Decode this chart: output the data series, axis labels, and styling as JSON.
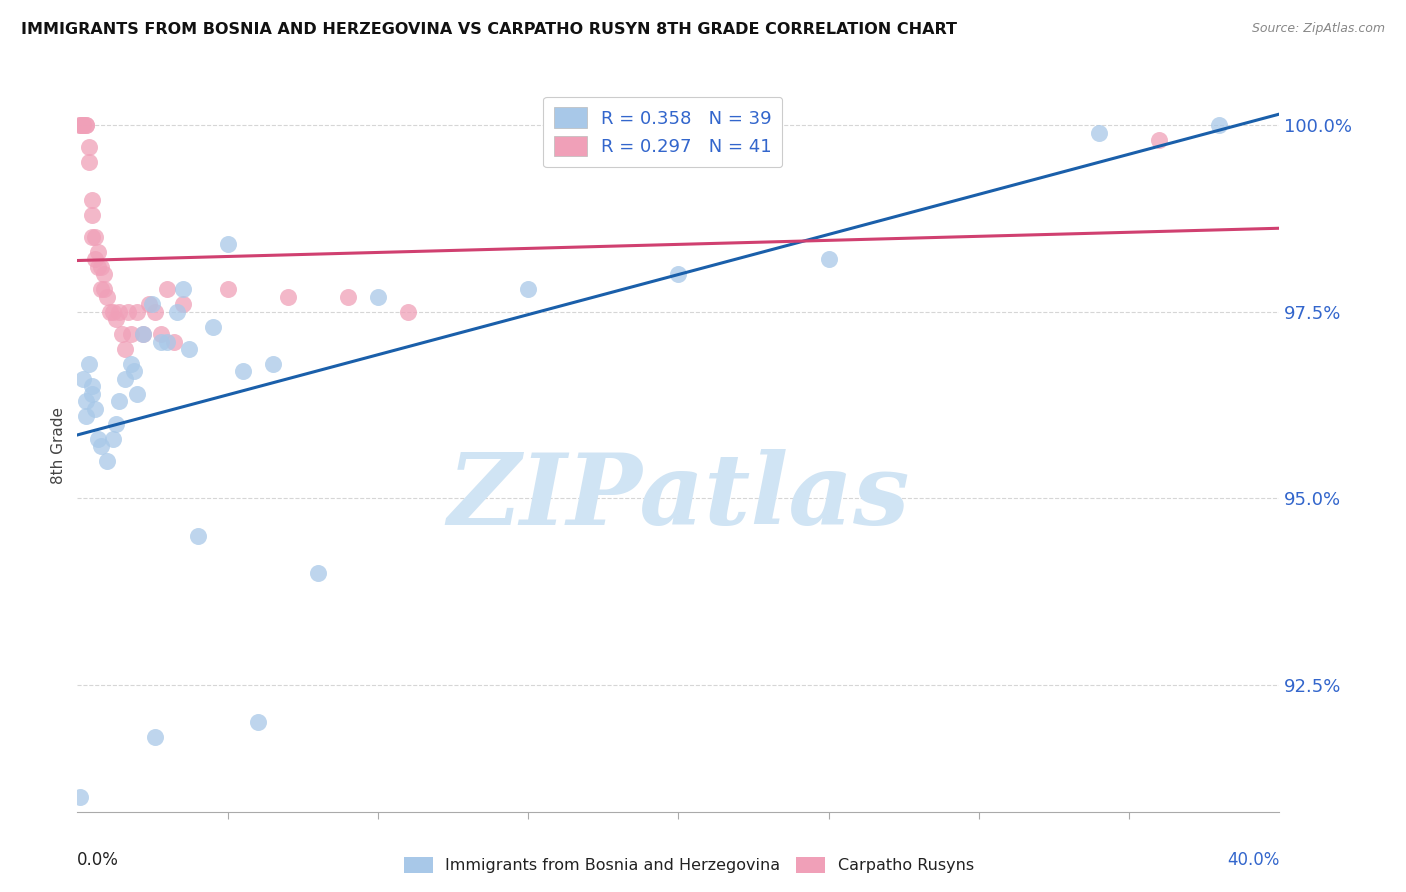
{
  "title": "IMMIGRANTS FROM BOSNIA AND HERZEGOVINA VS CARPATHO RUSYN 8TH GRADE CORRELATION CHART",
  "source": "Source: ZipAtlas.com",
  "ylabel": "8th Grade",
  "xmin": 0.0,
  "xmax": 0.4,
  "ymin": 0.908,
  "ymax": 1.006,
  "yticks": [
    1.0,
    0.975,
    0.95,
    0.925
  ],
  "ytick_labels": [
    "100.0%",
    "97.5%",
    "95.0%",
    "92.5%"
  ],
  "legend_r1": "R = 0.358",
  "legend_n1": "N = 39",
  "legend_r2": "R = 0.297",
  "legend_n2": "N = 41",
  "color_blue": "#a8c8e8",
  "color_pink": "#f0a0b8",
  "line_color_blue": "#1a5faa",
  "line_color_pink": "#d04070",
  "background": "#ffffff",
  "grid_color": "#cccccc",
  "title_color": "#111111",
  "blue_scatter_x": [
    0.001,
    0.002,
    0.003,
    0.004,
    0.005,
    0.006,
    0.007,
    0.008,
    0.01,
    0.012,
    0.014,
    0.016,
    0.018,
    0.02,
    0.022,
    0.025,
    0.028,
    0.03,
    0.033,
    0.037,
    0.04,
    0.045,
    0.05,
    0.06,
    0.065,
    0.08,
    0.1,
    0.15,
    0.2,
    0.25,
    0.34,
    0.38,
    0.003,
    0.005,
    0.013,
    0.019,
    0.026,
    0.035,
    0.055
  ],
  "blue_scatter_y": [
    0.91,
    0.966,
    0.963,
    0.968,
    0.965,
    0.962,
    0.958,
    0.957,
    0.955,
    0.958,
    0.963,
    0.966,
    0.968,
    0.964,
    0.972,
    0.976,
    0.971,
    0.971,
    0.975,
    0.97,
    0.945,
    0.973,
    0.984,
    0.92,
    0.968,
    0.94,
    0.977,
    0.978,
    0.98,
    0.982,
    0.999,
    1.0,
    0.961,
    0.964,
    0.96,
    0.967,
    0.918,
    0.978,
    0.967
  ],
  "pink_scatter_x": [
    0.001,
    0.001,
    0.002,
    0.002,
    0.003,
    0.003,
    0.004,
    0.004,
    0.005,
    0.005,
    0.005,
    0.006,
    0.006,
    0.007,
    0.007,
    0.008,
    0.008,
    0.009,
    0.009,
    0.01,
    0.011,
    0.012,
    0.013,
    0.014,
    0.015,
    0.016,
    0.017,
    0.018,
    0.02,
    0.022,
    0.024,
    0.026,
    0.028,
    0.03,
    0.032,
    0.035,
    0.05,
    0.07,
    0.09,
    0.11,
    0.36
  ],
  "pink_scatter_y": [
    1.0,
    1.0,
    1.0,
    1.0,
    1.0,
    1.0,
    0.995,
    0.997,
    0.99,
    0.985,
    0.988,
    0.982,
    0.985,
    0.981,
    0.983,
    0.981,
    0.978,
    0.98,
    0.978,
    0.977,
    0.975,
    0.975,
    0.974,
    0.975,
    0.972,
    0.97,
    0.975,
    0.972,
    0.975,
    0.972,
    0.976,
    0.975,
    0.972,
    0.978,
    0.971,
    0.976,
    0.978,
    0.977,
    0.977,
    0.975,
    0.998
  ],
  "watermark": "ZIPatlas",
  "watermark_color": "#d0e4f4"
}
